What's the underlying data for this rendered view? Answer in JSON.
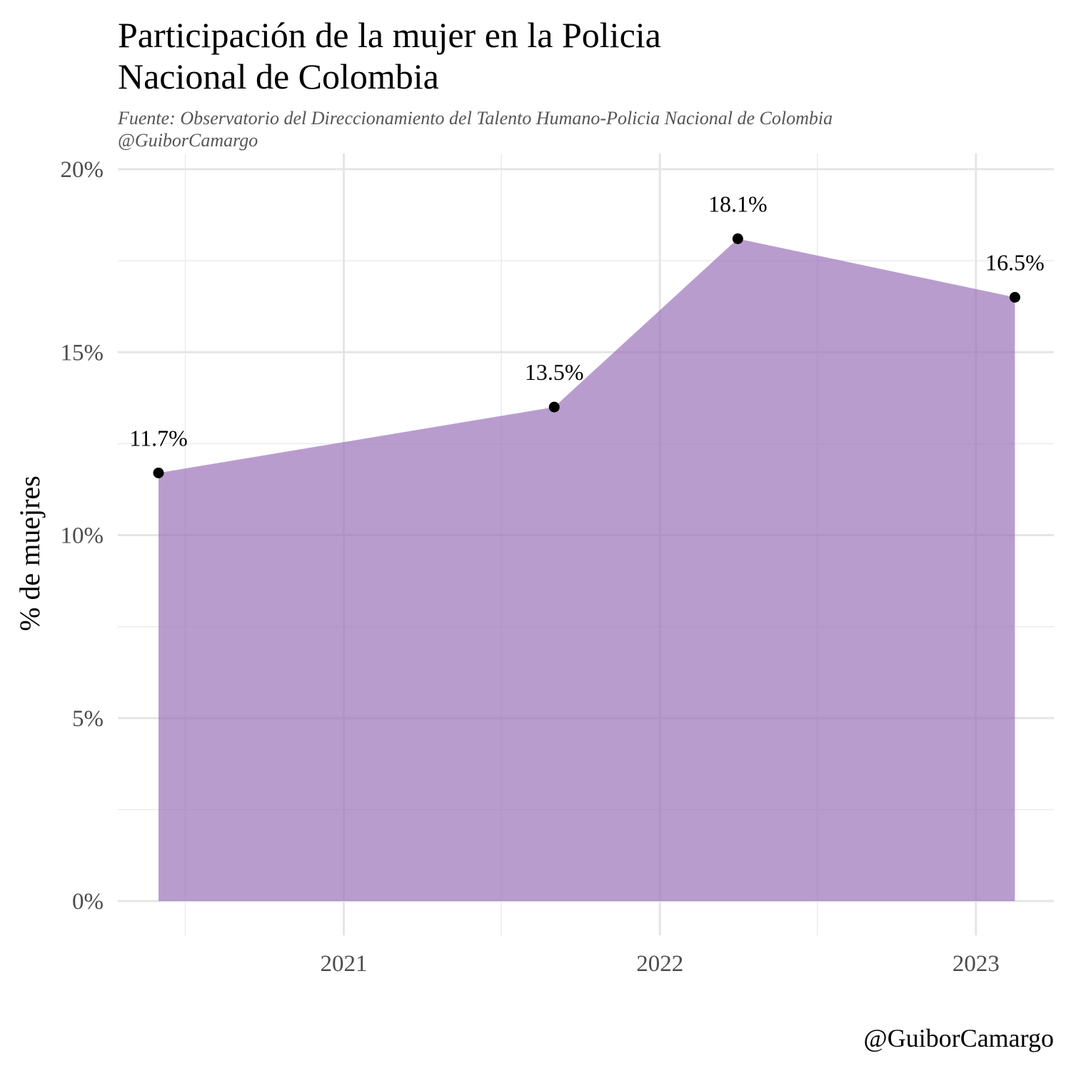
{
  "chart_data": {
    "type": "area",
    "title": [
      "Participación de la mujer en la Policia",
      "Nacional de Colombia"
    ],
    "subtitle": [
      "Fuente: Observatorio del Direccionamiento del Talento Humano-Policia Nacional de Colombia",
      "@GuiborCamargo"
    ],
    "caption": "@GuiborCamargo",
    "xlabel": "",
    "ylabel": "% de muejres",
    "x": [
      "2020-06-01",
      "2021-09-01",
      "2022-04-01",
      "2023-02-15"
    ],
    "values": [
      11.7,
      13.5,
      18.1,
      16.5
    ],
    "data_labels": [
      "11.7%",
      "13.5%",
      "18.1%",
      "16.5%"
    ],
    "xlim": [
      "2020-04-15",
      "2023-04-01"
    ],
    "ylim": [
      0,
      20
    ],
    "y_ticks": [
      0,
      5,
      10,
      15,
      20
    ],
    "y_tick_labels": [
      "0%",
      "5%",
      "10%",
      "15%",
      "20%"
    ],
    "x_ticks": [
      "2021-01-01",
      "2022-01-01",
      "2023-01-01"
    ],
    "x_tick_labels": [
      "2021",
      "2022",
      "2023"
    ],
    "grid": true,
    "legend": "none",
    "colors": {
      "area_fill": "#9b72b9",
      "point": "#000000"
    }
  }
}
